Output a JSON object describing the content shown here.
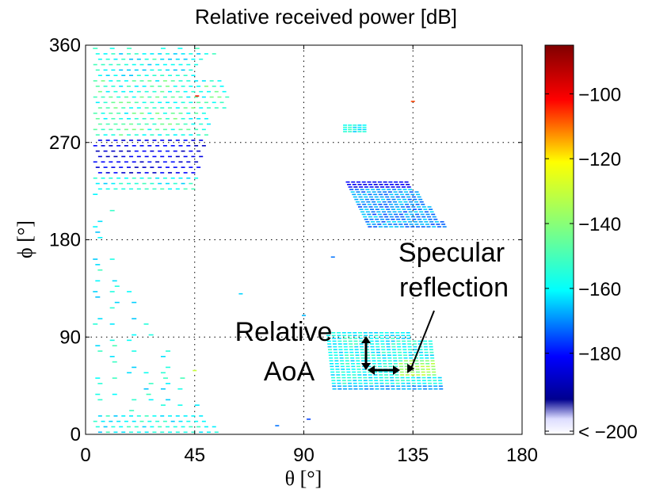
{
  "chart_data": {
    "type": "scatter",
    "title": "Relative received power [dB]",
    "xlabel": "θ [°]",
    "ylabel": "ϕ [°]",
    "xlim": [
      0,
      180
    ],
    "ylim": [
      0,
      360
    ],
    "xticks": [
      "0",
      "45",
      "90",
      "135",
      "180"
    ],
    "yticks": [
      "0",
      "90",
      "180",
      "270",
      "360"
    ],
    "grid": "dotted",
    "colorbar": {
      "range": [
        -205,
        -85
      ],
      "ticks": [
        "−100",
        "−120",
        "−140",
        "−160",
        "−180",
        "< −200"
      ],
      "tick_values": [
        -100,
        -120,
        -140,
        -160,
        -180,
        -200
      ],
      "colormap": "jet",
      "bottom_color": "#ffffff"
    },
    "clusters": [
      {
        "theta_range": [
          3,
          52
        ],
        "phi_range": [
          0,
          360
        ],
        "power_db": -150
      },
      {
        "theta_range": [
          100,
          150
        ],
        "phi_range": [
          40,
          95
        ],
        "power_db": -145
      },
      {
        "theta_range": [
          108,
          150
        ],
        "phi_range": [
          190,
          235
        ],
        "power_db": -155
      },
      {
        "theta_range": [
          107,
          115
        ],
        "phi_range": [
          279,
          287
        ],
        "power_db": -150
      }
    ],
    "annotations": [
      {
        "text": "Specular reflection",
        "target_theta": 132,
        "target_phi": 58
      },
      {
        "text": "Relative AoA",
        "target_theta": 122,
        "target_phi": 62
      }
    ]
  }
}
